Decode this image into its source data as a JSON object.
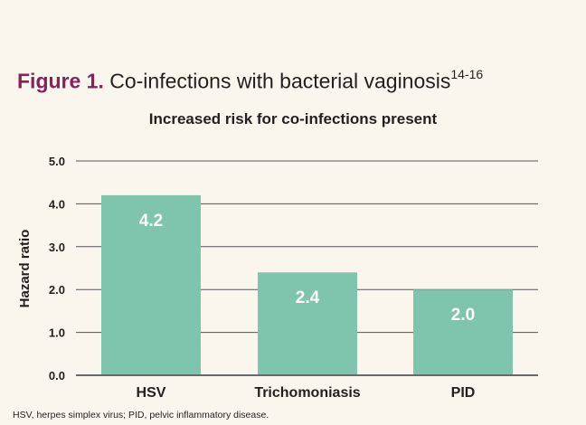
{
  "figure": {
    "label": "Figure 1.",
    "title": "Co-infections with bacterial vaginosis",
    "superscript": "14-16"
  },
  "caption": "HSV, herpes simplex virus; PID, pelvic inflammatory disease.",
  "colors": {
    "background": "#faf6ee",
    "bar": "#7fc4ad",
    "title_accent": "#8a1f5c",
    "text": "#231f20",
    "gridline": "#555555"
  },
  "chart_data": {
    "type": "bar",
    "title": "Increased risk for co-infections present",
    "xlabel": "",
    "ylabel": "Hazard ratio",
    "categories": [
      "HSV",
      "Trichomoniasis",
      "PID"
    ],
    "values": [
      4.2,
      2.4,
      2.0
    ],
    "value_labels": [
      "4.2",
      "2.4",
      "2.0"
    ],
    "ylim": [
      0,
      5
    ],
    "yticks": [
      "0.0",
      "1.0",
      "2.0",
      "3.0",
      "4.0",
      "5.0"
    ],
    "grid": true,
    "legend": "none"
  }
}
